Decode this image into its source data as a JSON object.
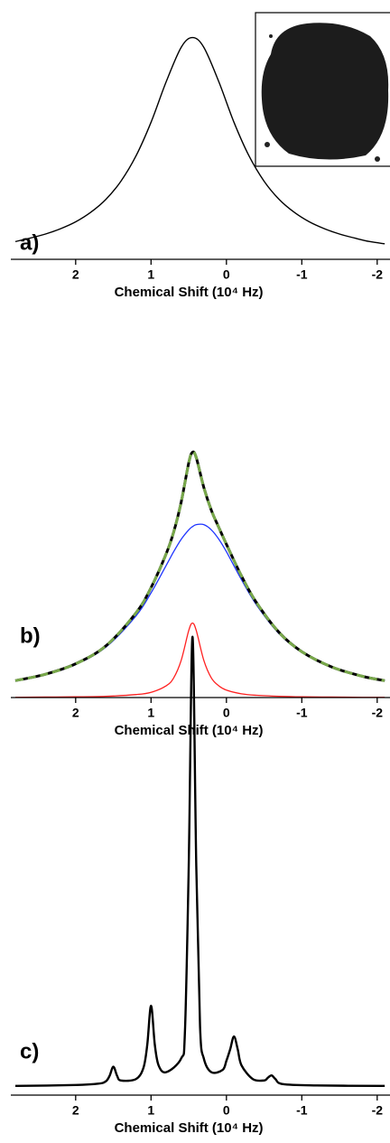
{
  "chart_data": [
    {
      "type": "line",
      "panel_label": "a)",
      "x_label": "Chemical Shift (10⁴ Hz)",
      "xlim": [
        2.86,
        -2.17
      ],
      "xticks": [
        2,
        1,
        0,
        -1,
        -2
      ],
      "ylim": [
        0,
        1.1
      ],
      "x": [
        2.8,
        2.6,
        2.4,
        2.2,
        2.0,
        1.8,
        1.6,
        1.4,
        1.2,
        1.0,
        0.8,
        0.6,
        0.45,
        0.3,
        0.1,
        -0.1,
        -0.3,
        -0.5,
        -0.7,
        -0.9,
        -1.1,
        -1.3,
        -1.5,
        -1.7,
        -1.9,
        -2.1
      ],
      "series": [
        {
          "color": "#000000",
          "linewidth": 1.4,
          "values": [
            0.08,
            0.096,
            0.114,
            0.138,
            0.169,
            0.212,
            0.27,
            0.352,
            0.466,
            0.618,
            0.8,
            0.956,
            1.0,
            0.956,
            0.8,
            0.618,
            0.466,
            0.352,
            0.27,
            0.212,
            0.169,
            0.138,
            0.114,
            0.096,
            0.08,
            0.07
          ]
        }
      ]
    },
    {
      "type": "line",
      "panel_label": "b)",
      "x_label": "Chemical Shift (10⁴ Hz)",
      "xlim": [
        2.86,
        -2.17
      ],
      "xticks": [
        2,
        1,
        0,
        -1,
        -2
      ],
      "ylim": [
        0,
        1.1
      ],
      "x": [
        2.8,
        2.4,
        2.0,
        1.6,
        1.2,
        1.0,
        0.8,
        0.7,
        0.6,
        0.5,
        0.45,
        0.4,
        0.3,
        0.2,
        0.1,
        0.0,
        -0.2,
        -0.4,
        -0.7,
        -1.0,
        -1.4,
        -1.8,
        -2.1
      ],
      "series": [
        {
          "color": "#ff2020",
          "linewidth": 1.3,
          "values": [
            0.001,
            0.002,
            0.003,
            0.005,
            0.012,
            0.021,
            0.047,
            0.079,
            0.15,
            0.27,
            0.3,
            0.27,
            0.15,
            0.079,
            0.047,
            0.03,
            0.015,
            0.009,
            0.005,
            0.003,
            0.002,
            0.001,
            0.001
          ]
        },
        {
          "color": "#1f35ff",
          "linewidth": 1.3,
          "values": [
            0.067,
            0.092,
            0.133,
            0.203,
            0.329,
            0.422,
            0.532,
            0.588,
            0.638,
            0.676,
            0.689,
            0.697,
            0.697,
            0.676,
            0.638,
            0.588,
            0.475,
            0.373,
            0.257,
            0.182,
            0.121,
            0.085,
            0.067
          ]
        },
        {
          "color": "#000000",
          "linewidth": 3,
          "values": [
            0.068,
            0.094,
            0.136,
            0.208,
            0.341,
            0.443,
            0.579,
            0.667,
            0.788,
            0.946,
            0.989,
            0.967,
            0.847,
            0.755,
            0.685,
            0.618,
            0.49,
            0.382,
            0.262,
            0.185,
            0.123,
            0.086,
            0.068
          ]
        },
        {
          "color": "#78a84a",
          "linewidth": 3,
          "style": "dashed",
          "values": [
            0.068,
            0.094,
            0.136,
            0.208,
            0.341,
            0.443,
            0.579,
            0.667,
            0.788,
            0.946,
            0.989,
            0.967,
            0.847,
            0.755,
            0.685,
            0.618,
            0.49,
            0.382,
            0.262,
            0.185,
            0.123,
            0.086,
            0.068
          ]
        }
      ]
    },
    {
      "type": "line",
      "panel_label": "c)",
      "x_label": "Chemical Shift (10⁴ Hz)",
      "xlim": [
        2.86,
        -2.17
      ],
      "xticks": [
        2,
        1,
        0,
        -1,
        -2
      ],
      "ylim": [
        0,
        1.1
      ],
      "x": [
        2.8,
        2.0,
        1.7,
        1.6,
        1.55,
        1.5,
        1.45,
        1.4,
        1.2,
        1.1,
        1.05,
        1.0,
        0.95,
        0.9,
        0.8,
        0.6,
        0.55,
        0.5,
        0.45,
        0.4,
        0.35,
        0.3,
        0.2,
        0.05,
        0.0,
        -0.05,
        -0.1,
        -0.15,
        -0.2,
        -0.35,
        -0.5,
        -0.55,
        -0.6,
        -0.65,
        -0.75,
        -1.2,
        -2.1
      ],
      "series": [
        {
          "color": "#000000",
          "linewidth": 2.4,
          "values": [
            0.02,
            0.022,
            0.025,
            0.03,
            0.042,
            0.062,
            0.042,
            0.032,
            0.035,
            0.06,
            0.11,
            0.195,
            0.11,
            0.065,
            0.05,
            0.08,
            0.14,
            0.5,
            1.0,
            0.5,
            0.15,
            0.08,
            0.05,
            0.055,
            0.075,
            0.1,
            0.128,
            0.1,
            0.065,
            0.035,
            0.032,
            0.038,
            0.043,
            0.035,
            0.024,
            0.021,
            0.02
          ]
        }
      ]
    }
  ]
}
